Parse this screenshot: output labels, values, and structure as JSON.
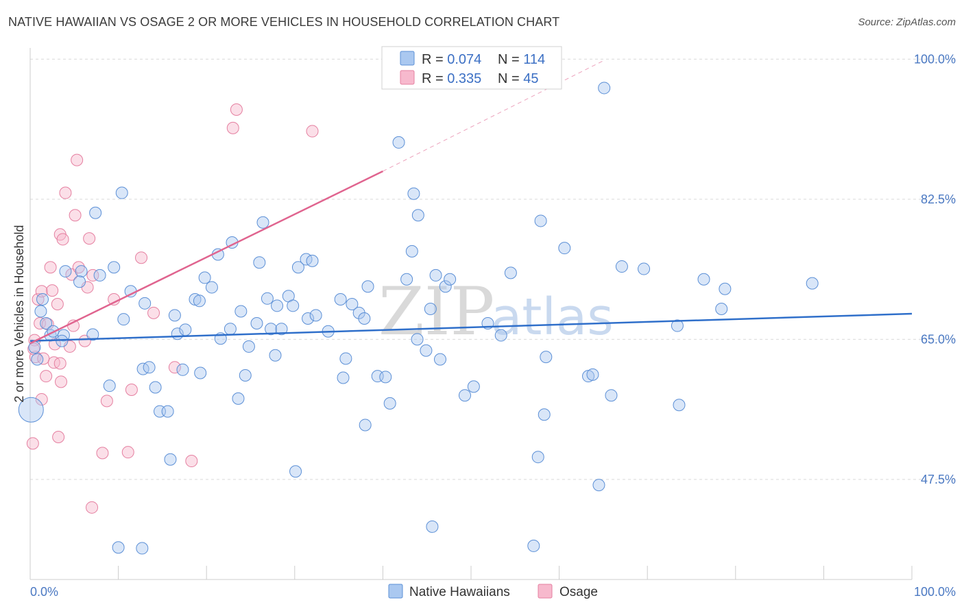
{
  "header": {
    "title": "NATIVE HAWAIIAN VS OSAGE 2 OR MORE VEHICLES IN HOUSEHOLD CORRELATION CHART",
    "source": "Source: ZipAtlas.com"
  },
  "watermark": {
    "zip": "ZIP",
    "atlas": "atlas"
  },
  "colors": {
    "blue_fill": "#aac8f0",
    "blue_stroke": "#5b8fd6",
    "blue_line": "#2f6fca",
    "pink_fill": "#f7b9cd",
    "pink_stroke": "#e57fa0",
    "pink_line": "#e0648f",
    "grid": "#d9d9d9",
    "axis_text": "#4a78c2"
  },
  "legend": {
    "rows": [
      {
        "r_label": "R = ",
        "r_value": "0.074",
        "n_label": "N = ",
        "n_value": "114"
      },
      {
        "r_label": "R = ",
        "r_value": "0.335",
        "n_label": "N = ",
        "n_value": "45"
      }
    ]
  },
  "bottom_legend": {
    "items": [
      "Native Hawaiians",
      "Osage"
    ]
  },
  "chart_data": {
    "type": "scatter",
    "xlabel": "",
    "ylabel": "2 or more Vehicles in Household",
    "xlim": [
      0,
      100
    ],
    "ylim": [
      35,
      102
    ],
    "x_tick_labels": [
      "0.0%",
      "100.0%"
    ],
    "y_ticks": [
      47.5,
      65.0,
      82.5,
      100.0
    ],
    "y_tick_labels": [
      "47.5%",
      "65.0%",
      "82.5%",
      "100.0%"
    ],
    "grid": true,
    "legend_position": "top-center",
    "series": [
      {
        "name": "Native Hawaiians",
        "r": 0.074,
        "n": 114,
        "trend": {
          "x": [
            0,
            100
          ],
          "y": [
            64.8,
            68.2
          ]
        },
        "points": [
          [
            0.5,
            64
          ],
          [
            0.8,
            62.5
          ],
          [
            1.2,
            68.5
          ],
          [
            1.4,
            70
          ],
          [
            1.8,
            67
          ],
          [
            2.3,
            65.5
          ],
          [
            2.6,
            66
          ],
          [
            3.8,
            65.5
          ],
          [
            3.6,
            64.8
          ],
          [
            4.0,
            73.5
          ],
          [
            5.8,
            73.5
          ],
          [
            5.6,
            72.2
          ],
          [
            7.4,
            80.8
          ],
          [
            7.9,
            73
          ],
          [
            9.5,
            74
          ],
          [
            10.4,
            83.3
          ],
          [
            10.6,
            67.5
          ],
          [
            11.4,
            71
          ],
          [
            13.0,
            69.5
          ],
          [
            12.8,
            61.3
          ],
          [
            13.5,
            61.5
          ],
          [
            14.2,
            59
          ],
          [
            14.7,
            56
          ],
          [
            15.6,
            56
          ],
          [
            15.9,
            50
          ],
          [
            16.4,
            68
          ],
          [
            16.7,
            65.7
          ],
          [
            17.6,
            66.2
          ],
          [
            17.3,
            61.2
          ],
          [
            18.7,
            70
          ],
          [
            19.2,
            69.8
          ],
          [
            19.3,
            60.8
          ],
          [
            19.8,
            72.7
          ],
          [
            20.6,
            71.5
          ],
          [
            21.3,
            75.6
          ],
          [
            21.6,
            65.1
          ],
          [
            22.7,
            66.3
          ],
          [
            22.9,
            77.1
          ],
          [
            23.6,
            57.6
          ],
          [
            23.9,
            68.5
          ],
          [
            24.4,
            60.5
          ],
          [
            24.8,
            64.1
          ],
          [
            25.7,
            67
          ],
          [
            26.0,
            74.6
          ],
          [
            26.4,
            79.6
          ],
          [
            26.9,
            70.1
          ],
          [
            27.3,
            66.3
          ],
          [
            27.8,
            63
          ],
          [
            28.0,
            69.2
          ],
          [
            28.5,
            66.3
          ],
          [
            29.3,
            70.4
          ],
          [
            29.8,
            69.2
          ],
          [
            30.4,
            74
          ],
          [
            31.3,
            75
          ],
          [
            31.5,
            67.6
          ],
          [
            32.0,
            74.8
          ],
          [
            32.4,
            68
          ],
          [
            30.1,
            48.5
          ],
          [
            33.8,
            66
          ],
          [
            35.2,
            70
          ],
          [
            35.5,
            60.2
          ],
          [
            35.8,
            62.6
          ],
          [
            36.5,
            69.4
          ],
          [
            37.3,
            68.3
          ],
          [
            37.9,
            67.6
          ],
          [
            38.3,
            71.6
          ],
          [
            38.0,
            54.3
          ],
          [
            39.4,
            60.4
          ],
          [
            40.3,
            60.3
          ],
          [
            40.8,
            57
          ],
          [
            41.8,
            89.6
          ],
          [
            42.7,
            72.5
          ],
          [
            43.3,
            76
          ],
          [
            43.5,
            83.2
          ],
          [
            44.0,
            80.5
          ],
          [
            43.9,
            65
          ],
          [
            44.9,
            63.6
          ],
          [
            45.4,
            68.8
          ],
          [
            45.6,
            41.6
          ],
          [
            46.0,
            73
          ],
          [
            46.5,
            62.5
          ],
          [
            47.1,
            71.6
          ],
          [
            47.6,
            72.5
          ],
          [
            49.3,
            58
          ],
          [
            50.3,
            59.1
          ],
          [
            51.9,
            67
          ],
          [
            53.4,
            65.5
          ],
          [
            54.5,
            73.3
          ],
          [
            57.1,
            39.2
          ],
          [
            57.6,
            50.3
          ],
          [
            57.9,
            79.8
          ],
          [
            58.3,
            55.6
          ],
          [
            58.5,
            62.8
          ],
          [
            60.6,
            76.4
          ],
          [
            63.3,
            60.4
          ],
          [
            63.8,
            60.6
          ],
          [
            64.5,
            46.8
          ],
          [
            65.1,
            96.4
          ],
          [
            65.9,
            58
          ],
          [
            67.1,
            74.1
          ],
          [
            69.6,
            73.8
          ],
          [
            73.4,
            66.7
          ],
          [
            73.6,
            56.8
          ],
          [
            76.4,
            72.5
          ],
          [
            78.4,
            68.8
          ],
          [
            78.8,
            71.3
          ],
          [
            88.7,
            72
          ],
          [
            0.1,
            56.2
          ],
          [
            7.1,
            65.6
          ],
          [
            12.7,
            38.9
          ],
          [
            10.0,
            39
          ],
          [
            9.0,
            59.2
          ]
        ]
      },
      {
        "name": "Osage",
        "r": 0.335,
        "n": 45,
        "trend": {
          "x": [
            0,
            40
          ],
          "y": [
            64.5,
            86.0
          ]
        },
        "trend_dashed": {
          "x": [
            40,
            65
          ],
          "y": [
            86.0,
            99.8
          ]
        },
        "points": [
          [
            0.3,
            52
          ],
          [
            0.6,
            62.8
          ],
          [
            0.5,
            64.9
          ],
          [
            0.9,
            70
          ],
          [
            1.3,
            71
          ],
          [
            1.1,
            67
          ],
          [
            1.3,
            57.5
          ],
          [
            1.8,
            60.4
          ],
          [
            2.3,
            74
          ],
          [
            2.5,
            71.1
          ],
          [
            2.7,
            62.1
          ],
          [
            3.1,
            69.4
          ],
          [
            2.8,
            64.4
          ],
          [
            3.2,
            52.8
          ],
          [
            3.5,
            59.7
          ],
          [
            3.4,
            62
          ],
          [
            3.4,
            78.1
          ],
          [
            3.7,
            77.5
          ],
          [
            4.0,
            83.3
          ],
          [
            4.5,
            64.1
          ],
          [
            4.7,
            73.1
          ],
          [
            4.9,
            66.7
          ],
          [
            5.1,
            80.5
          ],
          [
            5.3,
            87.4
          ],
          [
            5.5,
            74
          ],
          [
            6.2,
            64.8
          ],
          [
            6.7,
            77.6
          ],
          [
            7.1,
            73
          ],
          [
            7.0,
            44
          ],
          [
            8.2,
            50.8
          ],
          [
            8.7,
            57.3
          ],
          [
            9.5,
            70
          ],
          [
            11.1,
            50.9
          ],
          [
            11.5,
            58.7
          ],
          [
            12.6,
            75.2
          ],
          [
            14.0,
            68.3
          ],
          [
            16.4,
            61.5
          ],
          [
            18.3,
            49.8
          ],
          [
            23.0,
            91.4
          ],
          [
            23.4,
            93.7
          ],
          [
            32.0,
            91
          ],
          [
            1.5,
            62.6
          ],
          [
            6.5,
            71.5
          ],
          [
            2.0,
            66.9
          ],
          [
            0.4,
            63.8
          ]
        ]
      }
    ]
  }
}
